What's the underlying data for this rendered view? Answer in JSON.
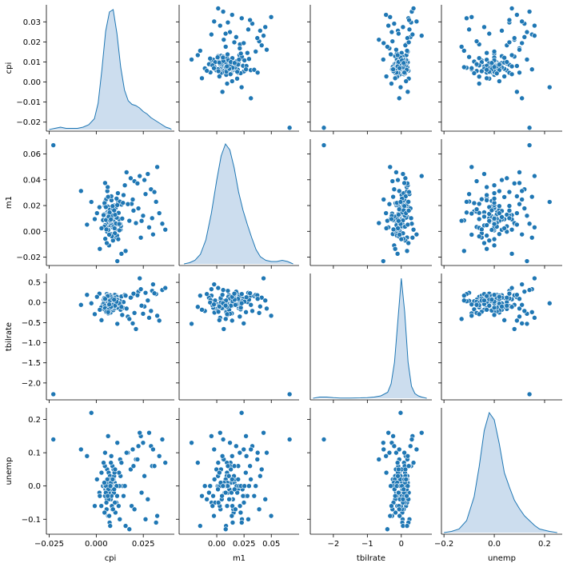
{
  "chart_data": {
    "type": "pairplot",
    "variables": [
      "cpi",
      "m1",
      "tbilrate",
      "unemp"
    ],
    "colors": {
      "point": "#1f77b4",
      "kde_line": "#1f77b4",
      "kde_fill": "#c6d9ec"
    },
    "grid": false,
    "diagonal": "kde",
    "off_diagonal": "scatter",
    "axes": {
      "cpi": {
        "lim": [
          -0.0265,
          0.0415
        ],
        "ticks": [
          -0.025,
          0.0,
          0.025
        ],
        "tick_labels": [
          "−0.025",
          "0.000",
          "0.025"
        ],
        "y_tick_labels": [
          "−0.02",
          "−0.01",
          "0.00",
          "0.01",
          "0.02",
          "0.03"
        ],
        "y_ticks": [
          -0.02,
          -0.01,
          0.0,
          0.01,
          0.02,
          0.03
        ],
        "y_lim": [
          -0.0245,
          0.0385
        ]
      },
      "m1": {
        "lim": [
          -0.0345,
          0.0755
        ],
        "ticks": [
          0.0,
          0.025,
          0.05
        ],
        "tick_labels": [
          "0.00",
          "0.025",
          "0.05"
        ],
        "y_ticks": [
          -0.02,
          0.0,
          0.02,
          0.04,
          0.06
        ],
        "y_tick_labels": [
          "−0.02",
          "0.00",
          "0.02",
          "0.04",
          "0.06"
        ],
        "y_lim": [
          -0.0265,
          0.0715
        ]
      },
      "tbilrate": {
        "lim": [
          -2.68,
          0.9
        ],
        "ticks": [
          -2,
          -1,
          0
        ],
        "tick_labels": [
          "−2",
          "−1",
          "0"
        ],
        "y_ticks": [
          0.5,
          0.0,
          -0.5,
          -1.0,
          -1.5,
          -2.0
        ],
        "y_tick_labels": [
          "0.5",
          "0.0",
          "−0.5",
          "−1.0",
          "−1.5",
          "−2.0"
        ],
        "y_lim": [
          -2.42,
          0.72
        ]
      },
      "unemp": {
        "lim": [
          -0.21,
          0.27
        ],
        "ticks": [
          -0.2,
          0.0,
          0.2
        ],
        "tick_labels": [
          "−0.2",
          "0.0",
          "0.2"
        ],
        "y_ticks": [
          -0.1,
          0.0,
          0.1,
          0.2
        ],
        "y_tick_labels": [
          "−0.1",
          "0.0",
          "0.1",
          "0.2"
        ],
        "y_lim": [
          -0.145,
          0.235
        ]
      }
    },
    "x_axis_labels": [
      "cpi",
      "m1",
      "tbilrate",
      "unemp"
    ],
    "y_axis_labels": [
      "cpi",
      "m1",
      "tbilrate",
      "unemp"
    ],
    "kde": {
      "cpi": {
        "x": [
          -0.025,
          -0.022,
          -0.019,
          -0.016,
          -0.013,
          -0.01,
          -0.007,
          -0.004,
          -0.001,
          0.001,
          0.003,
          0.005,
          0.007,
          0.009,
          0.011,
          0.013,
          0.015,
          0.017,
          0.019,
          0.021,
          0.023,
          0.025,
          0.027,
          0.029,
          0.031,
          0.033,
          0.035,
          0.037,
          0.039,
          0.04
        ],
        "density": [
          0.0,
          0.01,
          0.02,
          0.01,
          0.01,
          0.01,
          0.02,
          0.04,
          0.09,
          0.22,
          0.5,
          0.82,
          0.98,
          1.0,
          0.8,
          0.52,
          0.33,
          0.24,
          0.21,
          0.2,
          0.18,
          0.15,
          0.13,
          0.1,
          0.08,
          0.06,
          0.04,
          0.02,
          0.01,
          0.0
        ]
      },
      "m1": {
        "x": [
          -0.03,
          -0.025,
          -0.02,
          -0.015,
          -0.01,
          -0.005,
          0.0,
          0.004,
          0.008,
          0.012,
          0.016,
          0.02,
          0.024,
          0.028,
          0.032,
          0.036,
          0.04,
          0.045,
          0.05,
          0.055,
          0.06,
          0.065,
          0.07
        ],
        "density": [
          0.0,
          0.01,
          0.03,
          0.08,
          0.2,
          0.42,
          0.7,
          0.9,
          1.0,
          0.95,
          0.8,
          0.6,
          0.45,
          0.33,
          0.22,
          0.12,
          0.06,
          0.03,
          0.02,
          0.02,
          0.03,
          0.02,
          0.0
        ]
      },
      "tbilrate": {
        "x": [
          -2.6,
          -2.4,
          -2.2,
          -2.0,
          -1.8,
          -1.5,
          -1.2,
          -1.0,
          -0.8,
          -0.6,
          -0.4,
          -0.3,
          -0.2,
          -0.1,
          0.0,
          0.1,
          0.2,
          0.3,
          0.4,
          0.5,
          0.6,
          0.75
        ],
        "density": [
          0.0,
          0.01,
          0.01,
          0.005,
          0.002,
          0.002,
          0.003,
          0.005,
          0.01,
          0.02,
          0.05,
          0.12,
          0.3,
          0.65,
          1.0,
          0.72,
          0.3,
          0.1,
          0.04,
          0.02,
          0.01,
          0.0
        ]
      },
      "unemp": {
        "x": [
          -0.2,
          -0.17,
          -0.14,
          -0.11,
          -0.08,
          -0.06,
          -0.04,
          -0.02,
          0.0,
          0.02,
          0.04,
          0.06,
          0.08,
          0.1,
          0.12,
          0.14,
          0.16,
          0.18,
          0.2,
          0.22,
          0.25
        ],
        "density": [
          0.0,
          0.01,
          0.03,
          0.1,
          0.3,
          0.55,
          0.85,
          1.0,
          0.94,
          0.74,
          0.5,
          0.38,
          0.27,
          0.2,
          0.14,
          0.1,
          0.06,
          0.03,
          0.02,
          0.01,
          0.0
        ]
      }
    },
    "points": {
      "cpi": [
        0.0096,
        0.0113,
        0.0059,
        0.0076,
        0.0188,
        0.0036,
        0.0074,
        0.0129,
        0.0062,
        0.0084,
        0.0107,
        0.0041,
        0.0093,
        0.0055,
        0.0121,
        0.0017,
        0.0068,
        0.0102,
        0.0087,
        0.0049,
        0.0131,
        0.0079,
        0.0058,
        0.0145,
        0.0065,
        0.0098,
        0.0027,
        0.0116,
        0.0071,
        0.0089,
        0.0063,
        0.0106,
        0.0046,
        0.0082,
        0.0123,
        0.0053,
        0.0091,
        0.0069,
        0.0111,
        0.0039,
        0.0077,
        0.0134,
        0.0057,
        0.0085,
        0.0101,
        0.0066,
        0.0094,
        0.0048,
        0.0119,
        0.0073,
        0.0088,
        0.0061,
        0.0127,
        0.0081,
        0.0052,
        0.0099,
        0.0072,
        0.0109,
        0.0044,
        0.0092,
        0.0067,
        0.0115,
        0.0078,
        0.0056,
        0.0103,
        0.0086,
        0.0064,
        0.0125,
        0.0075,
        0.0095,
        0.0047,
        0.0112,
        0.0083,
        0.0059,
        0.0138,
        0.0071,
        0.0097,
        0.0051,
        0.0105,
        0.008,
        0.0066,
        0.0117,
        0.0089,
        0.0043,
        0.0142,
        0.0074,
        0.01,
        0.0061,
        0.0122,
        0.0087,
        0.0054,
        0.0108,
        0.0078,
        0.0095,
        0.0069,
        0.0152,
        0.0168,
        0.0176,
        0.0194,
        0.0211,
        0.0224,
        0.0237,
        0.0249,
        0.0262,
        0.0281,
        0.0297,
        0.0318,
        0.0335,
        0.0351,
        0.0367,
        0.0161,
        0.0183,
        0.0203,
        0.0219,
        0.0231,
        0.0256,
        0.0274,
        0.0291,
        0.0309,
        0.0324,
        0.0004,
        -0.0008,
        -0.0026,
        -0.0049,
        -0.0081,
        0.0028,
        0.0019,
        0.0112,
        0.0134,
        0.0156,
        0.0047,
        0.0063,
        0.0198,
        0.0241,
        0.0302,
        -0.0228
      ],
      "m1": [
        0.0102,
        0.0054,
        0.0148,
        -0.0021,
        0.0213,
        0.0087,
        0.0171,
        0.0012,
        0.0259,
        0.0063,
        -0.0048,
        0.0132,
        0.0201,
        0.0034,
        0.0094,
        0.0187,
        -0.0109,
        0.0155,
        0.0078,
        0.0236,
        0.0041,
        0.0119,
        -0.0003,
        0.0281,
        0.0069,
        0.0162,
        0.0027,
        0.0225,
        0.0091,
        -0.0071,
        0.0138,
        0.0053,
        0.0197,
        0.0116,
        0.0008,
        0.0249,
        0.0082,
        0.0177,
        -0.0033,
        0.0126,
        0.0046,
        0.0208,
        0.0097,
        0.0152,
        0.0019,
        0.0266,
        0.0073,
        -0.0058,
        0.0143,
        0.0111,
        0.0031,
        0.0193,
        0.0058,
        0.0241,
        0.0088,
        -0.0015,
        0.0167,
        0.0106,
        0.0219,
        0.0039,
        0.0135,
        0.0296,
        0.0066,
        -0.0091,
        0.0182,
        0.0123,
        0.0011,
        0.0231,
        0.0079,
        0.0158,
        0.0048,
        0.0204,
        -0.0039,
        0.0312,
        0.0099,
        0.0146,
        0.0024,
        0.0188,
        0.0061,
        0.0272,
        0.0114,
        -0.0061,
        0.0171,
        0.0036,
        0.0221,
        0.0085,
        0.0129,
        0.0343,
        0.0057,
        0.0196,
        0.0015,
        0.0254,
        0.0093,
        0.0163,
        -0.0026,
        0.0357,
        0.0211,
        0.0082,
        0.0247,
        0.0064,
        0.0178,
        -0.0049,
        0.0121,
        0.0289,
        0.0031,
        0.0102,
        0.0229,
        0.0141,
        0.0059,
        0.0013,
        0.0458,
        0.0412,
        0.0389,
        0.0372,
        0.0429,
        0.0398,
        0.0445,
        0.0326,
        0.0305,
        0.0499,
        0.0141,
        0.0095,
        0.0228,
        0.0052,
        0.0313,
        0.0024,
        -0.0136,
        -0.0231,
        -0.0174,
        -0.0152,
        0.0375,
        0.0268,
        0.0161,
        0.0081,
        -0.0024,
        0.0668
      ],
      "tbilrate": [
        0.02,
        -0.11,
        0.08,
        -0.25,
        0.14,
        -0.04,
        0.11,
        -0.18,
        0.05,
        -0.08,
        0.17,
        -0.01,
        -0.14,
        0.07,
        -0.06,
        0.22,
        -0.21,
        0.03,
        -0.1,
        0.13,
        -0.03,
        0.09,
        -0.16,
        0.01,
        -0.07,
        0.19,
        -0.12,
        0.06,
        -0.02,
        0.12,
        -0.27,
        0.04,
        -0.09,
        0.16,
        -0.05,
        0.1,
        -0.19,
        0.0,
        -0.13,
        0.08,
        -0.04,
        0.15,
        -0.22,
        0.02,
        -0.08,
        0.11,
        -0.15,
        0.06,
        -0.01,
        0.18,
        -0.11,
        0.03,
        -0.06,
        0.09,
        -0.24,
        0.05,
        -0.03,
        0.14,
        -0.17,
        0.01,
        -0.09,
        0.07,
        -0.12,
        0.21,
        -0.05,
        0.1,
        -0.2,
        0.04,
        -0.02,
        0.12,
        -0.14,
        0.06,
        -0.07,
        0.17,
        -0.31,
        0.03,
        -0.1,
        0.08,
        -0.04,
        0.13,
        -0.18,
        0.0,
        -0.06,
        0.11,
        -0.13,
        0.05,
        -0.08,
        0.16,
        -0.02,
        0.09,
        -0.23,
        0.02,
        -0.11,
        0.07,
        -0.05,
        0.19,
        -0.35,
        -0.41,
        -0.52,
        -0.66,
        0.27,
        0.33,
        -0.28,
        0.24,
        -0.38,
        0.29,
        0.21,
        -0.45,
        0.31,
        0.36,
        -0.15,
        0.12,
        -0.26,
        0.18,
        0.6,
        -0.1,
        0.05,
        -0.21,
        0.23,
        -0.33,
        0.14,
        -0.29,
        -0.02,
        0.19,
        -0.06,
        -0.44,
        -0.18,
        -0.53,
        -0.11,
        0.17,
        0.09,
        -0.24,
        0.22,
        -0.08,
        0.45,
        -2.28
      ],
      "unemp": [
        -0.02,
        0.0,
        -0.04,
        0.02,
        -0.06,
        0.0,
        -0.01,
        0.03,
        -0.03,
        0.0,
        -0.05,
        0.01,
        0.0,
        -0.07,
        0.04,
        -0.02,
        0.0,
        -0.08,
        0.02,
        -0.01,
        0.0,
        -0.04,
        0.05,
        -0.03,
        0.0,
        0.01,
        -0.06,
        0.0,
        0.03,
        -0.02,
        -0.09,
        0.0,
        0.06,
        -0.01,
        0.0,
        -0.05,
        0.02,
        0.0,
        -0.03,
        0.07,
        -0.04,
        0.0,
        0.01,
        -0.07,
        0.0,
        0.04,
        -0.02,
        0.0,
        -0.06,
        0.03,
        0.0,
        -0.01,
        0.08,
        -0.03,
        0.0,
        -0.05,
        0.02,
        0.0,
        -0.08,
        0.05,
        -0.02,
        0.0,
        0.01,
        -0.04,
        0.0,
        0.06,
        -0.01,
        -0.1,
        0.0,
        0.03,
        -0.03,
        0.0,
        -0.06,
        0.02,
        0.0,
        -0.11,
        0.04,
        -0.02,
        0.0,
        0.09,
        -0.04,
        0.0,
        -0.07,
        0.01,
        0.0,
        -0.12,
        0.05,
        -0.03,
        0.0,
        0.02,
        -0.05,
        0.0,
        0.07,
        -0.01,
        -0.09,
        0.0,
        0.1,
        -0.13,
        0.11,
        0.08,
        0.12,
        0.15,
        0.13,
        -0.1,
        0.16,
        0.06,
        -0.11,
        0.09,
        0.14,
        0.07,
        0.1,
        0.05,
        -0.07,
        0.08,
        0.16,
        0.03,
        -0.04,
        0.12,
        0.06,
        -0.09,
        0.02,
        -0.06,
        0.22,
        0.09,
        0.11,
        0.04,
        -0.03,
        0.13,
        0.07,
        -0.12,
        0.1,
        0.15,
        0.06,
        -0.02,
        0.11,
        0.14
      ]
    }
  }
}
